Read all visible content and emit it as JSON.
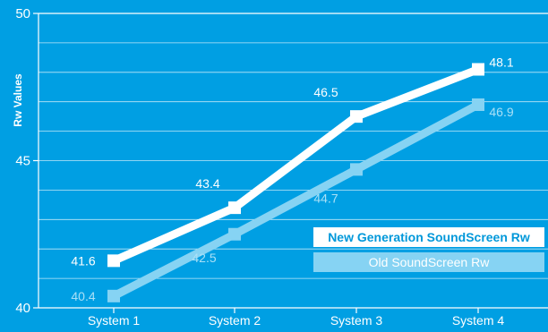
{
  "chart_data": {
    "type": "line",
    "categories": [
      "System 1",
      "System 2",
      "System 3",
      "System 4"
    ],
    "series": [
      {
        "name": "New Generation SoundScreen Rw",
        "values": [
          41.6,
          43.4,
          46.5,
          48.1
        ],
        "color": "#ffffff",
        "label_color": "#ffffff"
      },
      {
        "name": "Old SoundScreen Rw",
        "values": [
          40.4,
          42.5,
          44.7,
          46.9
        ],
        "color": "#86d3f3",
        "label_color": "#a9e0f7"
      }
    ],
    "ylabel": "Rw Values",
    "ylim": [
      40,
      50
    ],
    "yticks": [
      "40",
      "45",
      "50"
    ],
    "grid": true,
    "legend_position": "right",
    "colors": {
      "background": "#009fe3",
      "grid": "#ffffff"
    }
  }
}
